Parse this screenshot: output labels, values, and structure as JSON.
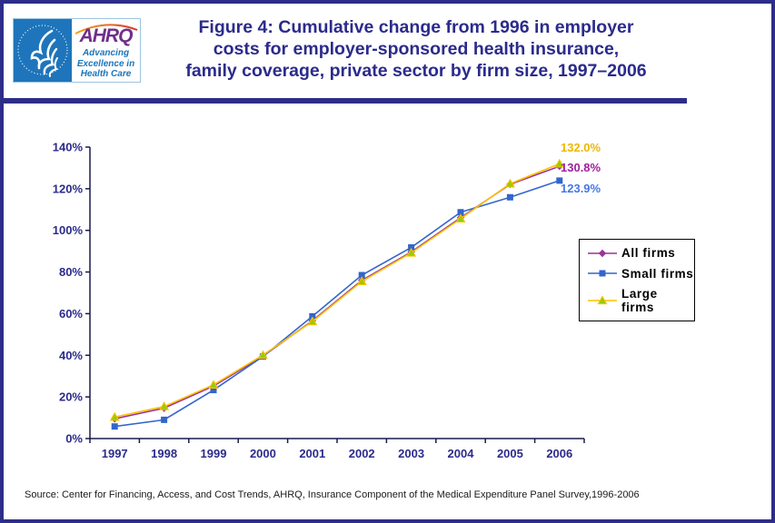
{
  "page": {
    "border_color": "#2D2D8A",
    "background": "#FFFFFF"
  },
  "header": {
    "logo": {
      "hhs_seal_text": "DEPARTMENT OF HEALTH & HUMAN SERVICES - USA",
      "ahrq_acronym": "AHRQ",
      "ahrq_tagline_lines": [
        "Advancing",
        "Excellence in",
        "Health Care"
      ],
      "ahrq_purple": "#702F8A",
      "hhs_blue": "#1E75BB"
    },
    "title_lines": [
      "Figure 4: Cumulative change from 1996 in employer",
      "costs for employer-sponsored health insurance,",
      "family coverage, private sector by firm size, 1997–2006"
    ],
    "title_color": "#2B2B8C"
  },
  "chart_data": {
    "type": "line",
    "title": "Cumulative change from 1996 in employer costs for employer-sponsored health insurance, family coverage, private sector by firm size, 1997-2006",
    "categories": [
      "1997",
      "1998",
      "1999",
      "2000",
      "2001",
      "2002",
      "2003",
      "2004",
      "2005",
      "2006"
    ],
    "series": [
      {
        "name": "All firms",
        "color": "#993399",
        "label_color": "#A020A0",
        "marker": "diamond",
        "values": [
          9.5,
          14.6,
          25.2,
          39.6,
          56.6,
          76.0,
          89.6,
          106.1,
          122.1,
          130.8
        ],
        "end_label": "130.8%"
      },
      {
        "name": "Small firms",
        "color": "#3366CC",
        "label_color": "#4477E6",
        "marker": "square",
        "values": [
          5.8,
          9.0,
          23.3,
          39.4,
          58.7,
          78.5,
          91.8,
          108.7,
          115.9,
          123.9
        ],
        "end_label": "123.9%"
      },
      {
        "name": "Large firms",
        "color": "#FFC000",
        "marker_fill": "#99CC00",
        "label_color": "#EFB700",
        "marker": "triangle",
        "values": [
          10.3,
          15.4,
          25.8,
          40.1,
          56.2,
          75.5,
          89.2,
          105.6,
          122.4,
          132.0
        ],
        "end_label": "132.0%"
      }
    ],
    "ytick_labels": [
      "0%",
      "20%",
      "40%",
      "60%",
      "80%",
      "100%",
      "120%",
      "140%"
    ],
    "ytick_values": [
      0,
      20,
      40,
      60,
      80,
      100,
      120,
      140
    ],
    "ylim": [
      0,
      140
    ],
    "grid": false,
    "legend_position": "right",
    "axis_color": "#1A1A4D",
    "tick_label_color": "#2B2B8C"
  },
  "footer": {
    "source": "Source: Center for Financing, Access, and Cost Trends, AHRQ, Insurance Component of the Medical Expenditure Panel Survey,1996-2006"
  }
}
